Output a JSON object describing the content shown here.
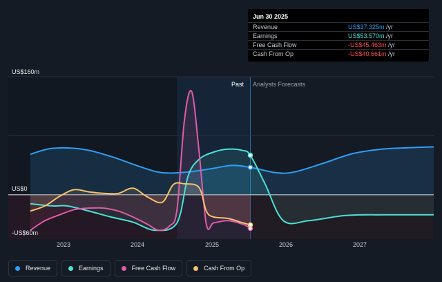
{
  "chart_data": {
    "type": "line",
    "ylim": [
      -60,
      160
    ],
    "y_tick_labels": [
      "US$160m",
      "US$0",
      "-US$60m"
    ],
    "x_tick_labels": [
      "2023",
      "2024",
      "2025",
      "2026",
      "2027"
    ],
    "past_label": "Past",
    "forecast_label": "Analysts Forecasts",
    "series": [
      {
        "name": "Revenue",
        "color": "#2f9ef4",
        "x": [
          2022.5,
          2022.8,
          2023.2,
          2023.6,
          2024.0,
          2024.3,
          2024.65,
          2025.0,
          2025.25,
          2025.5,
          2025.85,
          2026.1,
          2026.5,
          2026.9,
          2027.3,
          2027.7,
          2028.0
        ],
        "y": [
          55,
          63,
          62,
          52,
          38,
          30,
          31,
          36,
          40,
          37.3,
          30,
          31,
          43,
          56,
          62,
          64,
          65
        ]
      },
      {
        "name": "Earnings",
        "color": "#4ee0d6",
        "x": [
          2022.5,
          2022.8,
          2023.0,
          2023.3,
          2023.6,
          2023.9,
          2024.2,
          2024.5,
          2024.65,
          2024.8,
          2025.0,
          2025.2,
          2025.4,
          2025.5,
          2025.7,
          2025.95,
          2026.3,
          2026.8,
          2027.3,
          2028.0
        ],
        "y": [
          -12,
          -15,
          -15,
          -22,
          -30,
          -37,
          -48,
          -38,
          25,
          48,
          58,
          62,
          60,
          53.6,
          15,
          -35,
          -35,
          -28,
          -27,
          -27
        ]
      },
      {
        "name": "Free Cash Flow",
        "color": "#e05ca8",
        "x": [
          2022.5,
          2022.7,
          2022.9,
          2023.1,
          2023.3,
          2023.5,
          2023.7,
          2023.9,
          2024.1,
          2024.25,
          2024.4,
          2024.5,
          2024.6,
          2024.7,
          2024.8,
          2024.9,
          2025.0,
          2025.2,
          2025.4,
          2025.5
        ],
        "y": [
          -48,
          -35,
          -27,
          -20,
          -18,
          -18,
          -22,
          -30,
          -40,
          -48,
          -42,
          -20,
          100,
          140,
          60,
          -40,
          -38,
          -35,
          -40,
          -45.5
        ]
      },
      {
        "name": "Cash From Op",
        "color": "#f4c26e",
        "x": [
          2022.5,
          2022.7,
          2022.9,
          2023.1,
          2023.3,
          2023.5,
          2023.7,
          2023.9,
          2024.1,
          2024.3,
          2024.45,
          2024.6,
          2024.8,
          2024.9,
          2025.0,
          2025.2,
          2025.4,
          2025.5
        ],
        "y": [
          -22,
          -15,
          -2,
          7,
          4,
          2,
          2,
          9,
          -3,
          -10,
          14,
          15,
          10,
          -22,
          -30,
          -32,
          -38,
          -40.7
        ]
      }
    ]
  },
  "tooltip": {
    "date": "Jun 30 2025",
    "rows": [
      {
        "label": "Revenue",
        "value": "US$37.325m",
        "unit": " /yr",
        "color": "#2f9ef4"
      },
      {
        "label": "Earnings",
        "value": "US$53.570m",
        "unit": " /yr",
        "color": "#4ee0d6"
      },
      {
        "label": "Free Cash Flow",
        "value": "-US$45.463m",
        "unit": " /yr",
        "color": "#ff4d4d"
      },
      {
        "label": "Cash From Op",
        "value": "-US$40.661m",
        "unit": " /yr",
        "color": "#ff4d4d"
      }
    ]
  },
  "legend": [
    {
      "label": "Revenue",
      "color": "#2f9ef4"
    },
    {
      "label": "Earnings",
      "color": "#4ee0d6"
    },
    {
      "label": "Free Cash Flow",
      "color": "#e05ca8"
    },
    {
      "label": "Cash From Op",
      "color": "#f4c26e"
    }
  ]
}
